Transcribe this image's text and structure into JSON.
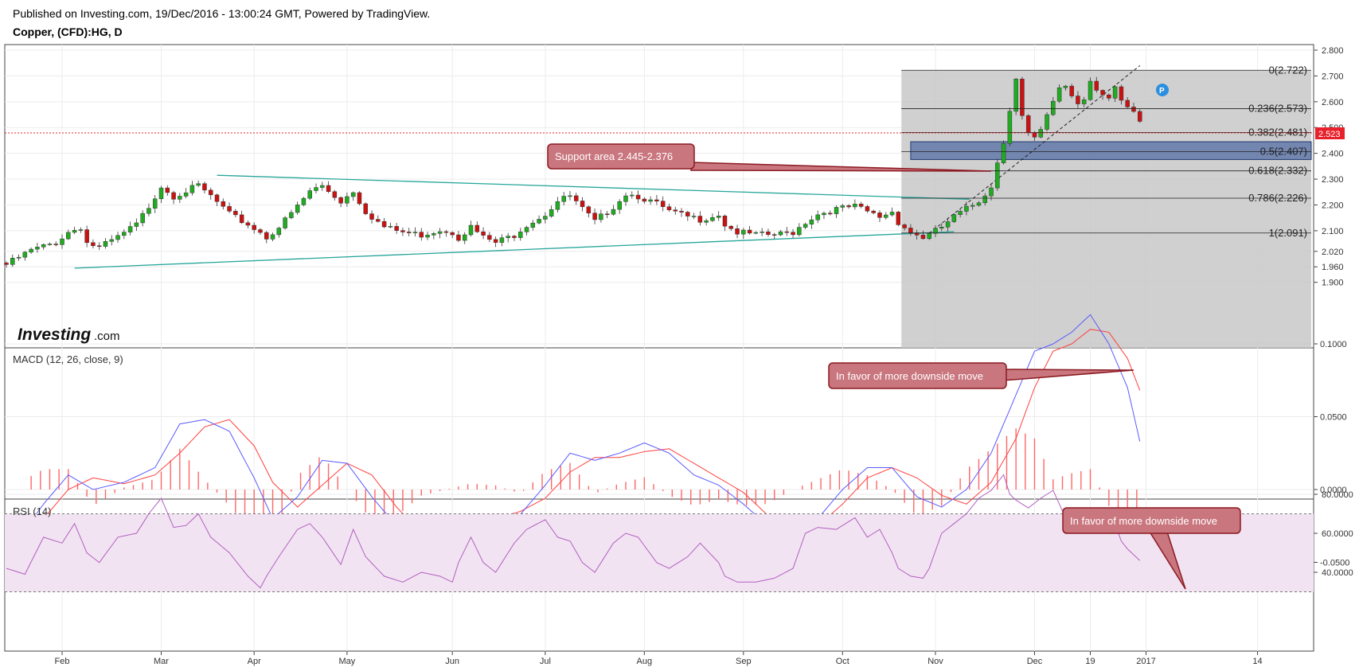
{
  "header": {
    "published": "Published on Investing.com, 19/Dec/2016 - 13:00:24 GMT, Powered by TradingView.",
    "symbol": "Copper, (CFD):HG, D"
  },
  "logo": {
    "brand": "Investing",
    "suffix": ".com"
  },
  "chart_data": [
    {
      "type": "candlestick",
      "panel": "price",
      "symbol": "Copper, (CFD):HG",
      "timeframe": "D",
      "last_price": "2.523",
      "y_ticks": [
        "2.800",
        "2.700",
        "2.600",
        "2.500",
        "2.400",
        "2.300",
        "2.200",
        "2.100",
        "2.020",
        "1.960",
        "1.900"
      ],
      "x_labels": [
        "Feb",
        "Mar",
        "Apr",
        "May",
        "Jun",
        "Jul",
        "Aug",
        "Sep",
        "Oct",
        "Nov",
        "Dec",
        "19",
        "2017",
        "14"
      ],
      "close_path": [
        [
          0,
          1.975
        ],
        [
          4,
          2.03
        ],
        [
          8,
          2.06
        ],
        [
          10,
          2.1
        ],
        [
          12,
          2.12
        ],
        [
          13,
          2.06
        ],
        [
          15,
          2.04
        ],
        [
          18,
          2.08
        ],
        [
          21,
          2.13
        ],
        [
          23,
          2.2
        ],
        [
          25,
          2.28
        ],
        [
          27,
          2.24
        ],
        [
          29,
          2.26
        ],
        [
          31,
          2.28
        ],
        [
          33,
          2.24
        ],
        [
          36,
          2.17
        ],
        [
          39,
          2.13
        ],
        [
          41,
          2.1
        ],
        [
          42,
          2.08
        ],
        [
          44,
          2.12
        ],
        [
          47,
          2.2
        ],
        [
          49,
          2.26
        ],
        [
          51,
          2.28
        ],
        [
          54,
          2.22
        ],
        [
          56,
          2.26
        ],
        [
          58,
          2.18
        ],
        [
          61,
          2.12
        ],
        [
          64,
          2.1
        ],
        [
          67,
          2.09
        ],
        [
          70,
          2.11
        ],
        [
          72,
          2.1
        ],
        [
          73,
          2.08
        ],
        [
          75,
          2.12
        ],
        [
          77,
          2.08
        ],
        [
          79,
          2.06
        ],
        [
          82,
          2.09
        ],
        [
          84,
          2.13
        ],
        [
          87,
          2.17
        ],
        [
          89,
          2.22
        ],
        [
          91,
          2.24
        ],
        [
          93,
          2.19
        ],
        [
          95,
          2.14
        ],
        [
          98,
          2.2
        ],
        [
          100,
          2.25
        ],
        [
          102,
          2.24
        ],
        [
          105,
          2.21
        ],
        [
          107,
          2.18
        ],
        [
          110,
          2.16
        ],
        [
          112,
          2.15
        ],
        [
          115,
          2.17
        ],
        [
          116,
          2.13
        ],
        [
          118,
          2.1
        ],
        [
          121,
          2.09
        ],
        [
          124,
          2.09
        ],
        [
          127,
          2.1
        ],
        [
          129,
          2.14
        ],
        [
          131,
          2.17
        ],
        [
          134,
          2.19
        ],
        [
          137,
          2.2
        ],
        [
          139,
          2.18
        ],
        [
          141,
          2.16
        ],
        [
          143,
          2.18
        ],
        [
          144,
          2.14
        ],
        [
          146,
          2.1
        ],
        [
          148,
          2.08
        ],
        [
          149,
          2.09
        ]
      ],
      "close_path_rally": [
        [
          149,
          2.09
        ],
        [
          151,
          2.12
        ],
        [
          153,
          2.16
        ],
        [
          155,
          2.19
        ],
        [
          157,
          2.22
        ],
        [
          159,
          2.28
        ],
        [
          160,
          2.37
        ],
        [
          161,
          2.45
        ],
        [
          162,
          2.58
        ],
        [
          163,
          2.7
        ],
        [
          164,
          2.55
        ],
        [
          165,
          2.48
        ],
        [
          166,
          2.46
        ],
        [
          167,
          2.49
        ],
        [
          168,
          2.55
        ],
        [
          169,
          2.6
        ],
        [
          170,
          2.66
        ],
        [
          171,
          2.67
        ],
        [
          172,
          2.63
        ],
        [
          173,
          2.6
        ],
        [
          174,
          2.62
        ],
        [
          175,
          2.69
        ],
        [
          176,
          2.66
        ],
        [
          177,
          2.64
        ],
        [
          178,
          2.62
        ],
        [
          179,
          2.66
        ],
        [
          180,
          2.6
        ],
        [
          181,
          2.58
        ],
        [
          182,
          2.56
        ],
        [
          183,
          2.52
        ]
      ],
      "fibonacci_levels": [
        {
          "label": "0(2.722)",
          "value": 2.722
        },
        {
          "label": "0.236(2.573)",
          "value": 2.573
        },
        {
          "label": "0.382(2.481)",
          "value": 2.481
        },
        {
          "label": "0.5(2.407)",
          "value": 2.407
        },
        {
          "label": "0.618(2.332)",
          "value": 2.332
        },
        {
          "label": "0.786(2.226)",
          "value": 2.226
        },
        {
          "label": "1(2.091)",
          "value": 2.091
        }
      ],
      "support_zone": [
        2.376,
        2.445
      ],
      "annotation": "Support area 2.445-2.376",
      "marker": "P"
    },
    {
      "type": "line",
      "panel": "macd",
      "title": "MACD (12, 26, close, 9)",
      "y_ticks": [
        "0.1000",
        "0.0500",
        "0.0000",
        "-0.0500"
      ],
      "annotation": "In favor of more downside move",
      "macd_path": [
        [
          0,
          -0.045
        ],
        [
          6,
          -0.01
        ],
        [
          10,
          0.01
        ],
        [
          14,
          0.0
        ],
        [
          19,
          0.005
        ],
        [
          24,
          0.015
        ],
        [
          28,
          0.045
        ],
        [
          32,
          0.048
        ],
        [
          36,
          0.04
        ],
        [
          40,
          0.008
        ],
        [
          43,
          -0.02
        ],
        [
          47,
          -0.005
        ],
        [
          51,
          0.02
        ],
        [
          55,
          0.018
        ],
        [
          59,
          -0.005
        ],
        [
          63,
          -0.025
        ],
        [
          67,
          -0.033
        ],
        [
          71,
          -0.03
        ],
        [
          75,
          -0.022
        ],
        [
          79,
          -0.018
        ],
        [
          83,
          -0.017
        ],
        [
          87,
          0.003
        ],
        [
          91,
          0.025
        ],
        [
          95,
          0.02
        ],
        [
          99,
          0.025
        ],
        [
          103,
          0.032
        ],
        [
          107,
          0.025
        ],
        [
          111,
          0.01
        ],
        [
          115,
          0.003
        ],
        [
          119,
          -0.01
        ],
        [
          123,
          -0.025
        ],
        [
          127,
          -0.028
        ],
        [
          131,
          -0.02
        ],
        [
          135,
          0.0
        ],
        [
          139,
          0.015
        ],
        [
          143,
          0.015
        ],
        [
          147,
          -0.005
        ],
        [
          151,
          -0.012
        ],
        [
          155,
          0.0
        ],
        [
          159,
          0.025
        ],
        [
          163,
          0.065
        ],
        [
          166,
          0.095
        ],
        [
          169,
          0.1
        ],
        [
          172,
          0.108
        ],
        [
          175,
          0.12
        ],
        [
          178,
          0.1
        ],
        [
          181,
          0.07
        ],
        [
          183,
          0.033
        ]
      ],
      "signal_path": [
        [
          0,
          -0.045
        ],
        [
          6,
          -0.02
        ],
        [
          10,
          0.0
        ],
        [
          14,
          0.008
        ],
        [
          19,
          0.004
        ],
        [
          24,
          0.01
        ],
        [
          28,
          0.025
        ],
        [
          32,
          0.043
        ],
        [
          36,
          0.048
        ],
        [
          40,
          0.03
        ],
        [
          43,
          0.005
        ],
        [
          47,
          -0.012
        ],
        [
          51,
          0.003
        ],
        [
          55,
          0.018
        ],
        [
          59,
          0.01
        ],
        [
          63,
          -0.012
        ],
        [
          67,
          -0.03
        ],
        [
          71,
          -0.03
        ],
        [
          75,
          -0.025
        ],
        [
          79,
          -0.02
        ],
        [
          83,
          -0.015
        ],
        [
          87,
          -0.006
        ],
        [
          91,
          0.012
        ],
        [
          95,
          0.022
        ],
        [
          99,
          0.022
        ],
        [
          103,
          0.026
        ],
        [
          107,
          0.028
        ],
        [
          111,
          0.018
        ],
        [
          115,
          0.008
        ],
        [
          119,
          -0.002
        ],
        [
          123,
          -0.018
        ],
        [
          127,
          -0.028
        ],
        [
          131,
          -0.025
        ],
        [
          135,
          -0.01
        ],
        [
          139,
          0.008
        ],
        [
          143,
          0.015
        ],
        [
          147,
          0.008
        ],
        [
          151,
          -0.004
        ],
        [
          155,
          -0.01
        ],
        [
          159,
          0.005
        ],
        [
          163,
          0.035
        ],
        [
          166,
          0.07
        ],
        [
          169,
          0.095
        ],
        [
          172,
          0.1
        ],
        [
          175,
          0.11
        ],
        [
          178,
          0.108
        ],
        [
          181,
          0.09
        ],
        [
          183,
          0.068
        ]
      ]
    },
    {
      "type": "line",
      "panel": "rsi",
      "title": "RSI (14)",
      "y_ticks": [
        "80.0000",
        "60.0000",
        "40.0000"
      ],
      "band": [
        30,
        70
      ],
      "annotation": "In favor of more downside move",
      "rsi_path": [
        [
          0,
          42
        ],
        [
          3,
          39
        ],
        [
          6,
          58
        ],
        [
          9,
          55
        ],
        [
          11,
          65
        ],
        [
          13,
          50
        ],
        [
          15,
          45
        ],
        [
          18,
          58
        ],
        [
          21,
          60
        ],
        [
          23,
          70
        ],
        [
          25,
          78
        ],
        [
          27,
          63
        ],
        [
          29,
          64
        ],
        [
          31,
          70
        ],
        [
          33,
          58
        ],
        [
          36,
          50
        ],
        [
          39,
          38
        ],
        [
          41,
          32
        ],
        [
          42,
          38
        ],
        [
          44,
          48
        ],
        [
          47,
          62
        ],
        [
          49,
          65
        ],
        [
          51,
          58
        ],
        [
          54,
          44
        ],
        [
          56,
          62
        ],
        [
          58,
          48
        ],
        [
          61,
          38
        ],
        [
          64,
          35
        ],
        [
          67,
          40
        ],
        [
          70,
          38
        ],
        [
          72,
          35
        ],
        [
          73,
          45
        ],
        [
          75,
          58
        ],
        [
          77,
          45
        ],
        [
          79,
          40
        ],
        [
          82,
          55
        ],
        [
          84,
          62
        ],
        [
          87,
          67
        ],
        [
          89,
          58
        ],
        [
          91,
          56
        ],
        [
          93,
          45
        ],
        [
          95,
          40
        ],
        [
          98,
          55
        ],
        [
          100,
          60
        ],
        [
          102,
          58
        ],
        [
          105,
          45
        ],
        [
          107,
          42
        ],
        [
          110,
          48
        ],
        [
          112,
          55
        ],
        [
          115,
          45
        ],
        [
          116,
          38
        ],
        [
          118,
          35
        ],
        [
          121,
          35
        ],
        [
          124,
          37
        ],
        [
          127,
          42
        ],
        [
          129,
          60
        ],
        [
          131,
          63
        ],
        [
          134,
          62
        ],
        [
          137,
          68
        ],
        [
          139,
          58
        ],
        [
          141,
          62
        ],
        [
          143,
          50
        ],
        [
          144,
          42
        ],
        [
          146,
          38
        ],
        [
          148,
          37
        ],
        [
          149,
          42
        ],
        [
          151,
          60
        ],
        [
          153,
          65
        ],
        [
          155,
          70
        ],
        [
          157,
          78
        ],
        [
          159,
          82
        ],
        [
          161,
          90
        ],
        [
          162,
          80
        ],
        [
          163,
          77
        ],
        [
          165,
          73
        ],
        [
          167,
          78
        ],
        [
          169,
          82
        ],
        [
          171,
          68
        ],
        [
          173,
          72
        ],
        [
          175,
          70
        ],
        [
          177,
          62
        ],
        [
          179,
          65
        ],
        [
          180,
          56
        ],
        [
          181,
          52
        ],
        [
          183,
          46
        ]
      ]
    }
  ],
  "colors": {
    "up": "#1fad1f",
    "down": "#cc1111",
    "macd_line": "#5a5aff",
    "signal_line": "#ff4040",
    "histogram": "#ff6666",
    "trendline": "#26a69a",
    "rsi_line": "#b160c0",
    "rsi_band": "#f2e3f2",
    "fib_zone": "#c8c8c8",
    "support_zone": "#5b73a8",
    "callout": "#c9767e",
    "callout_border": "#8b1a22",
    "last_price_badge": "#e8212b",
    "marker": "#2b8fe0"
  }
}
